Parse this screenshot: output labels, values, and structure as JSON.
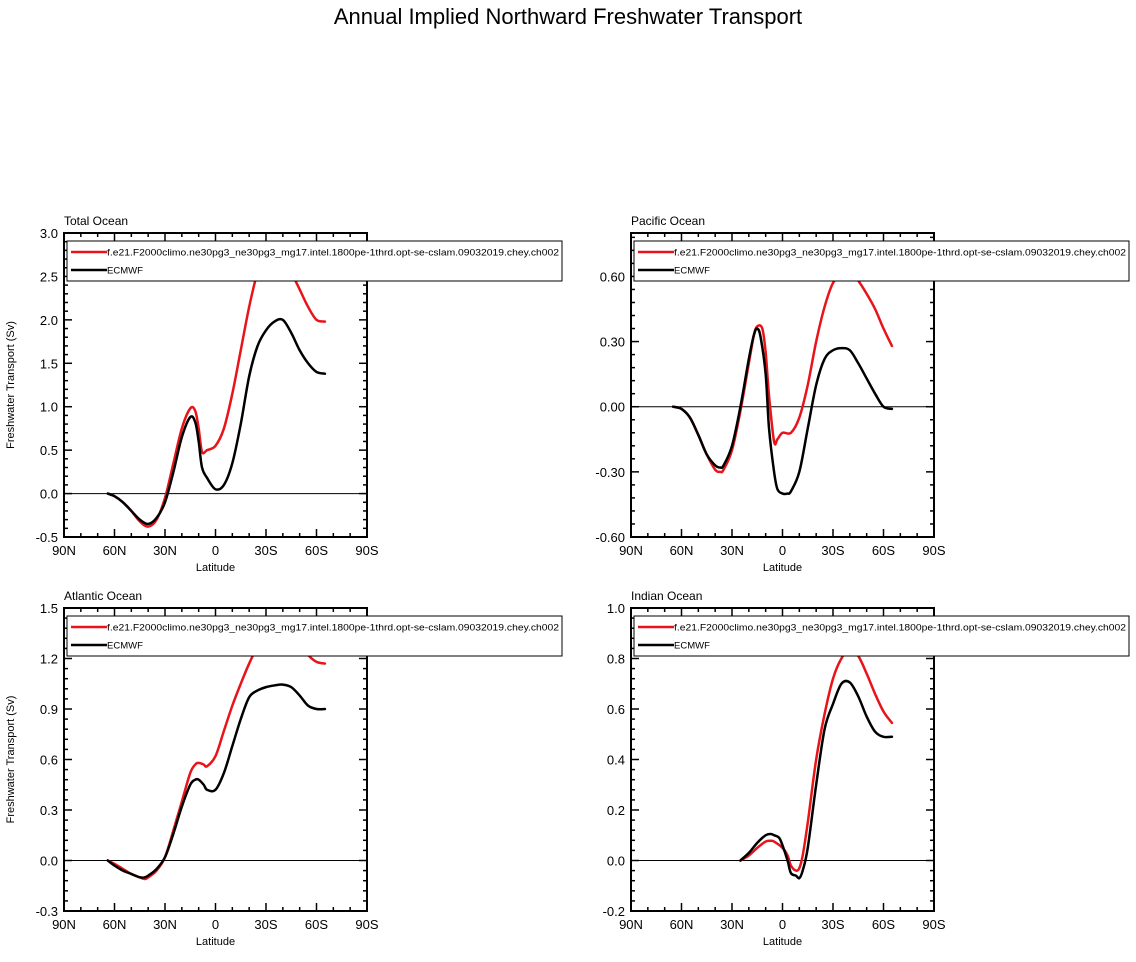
{
  "figure": {
    "title": "Annual Implied Northward Freshwater Transport"
  },
  "colors": {
    "model": "#e8141a",
    "obs": "#000000",
    "axis": "#000000"
  },
  "chart_data": [
    {
      "type": "line",
      "title": "Total Ocean",
      "xlabel": "Latitude",
      "ylabel": "Freshwater Transport (Sv)",
      "xlim": [
        -90,
        90
      ],
      "ylim": [
        -0.5,
        3.0
      ],
      "x_ticks": [
        -90,
        -60,
        -30,
        0,
        30,
        60,
        90
      ],
      "x_tick_labels": [
        "90N",
        "60N",
        "30N",
        "0",
        "30S",
        "60S",
        "90S"
      ],
      "y_ticks": [
        -0.5,
        0.0,
        0.5,
        1.0,
        1.5,
        2.0,
        2.5,
        3.0
      ],
      "y_tick_labels": [
        "-0.5",
        "0.0",
        "0.5",
        "1.0",
        "1.5",
        "2.0",
        "2.5",
        "3.0"
      ],
      "legend_position": "top",
      "series": [
        {
          "name": "f.e21.F2000climo.ne30pg3_ne30pg3_mg17.intel.1800pe-1thrd.opt-se-cslam.09032019.chey.ch002",
          "color": "#e8141a",
          "x": [
            -64,
            -60,
            -55,
            -50,
            -45,
            -40,
            -35,
            -30,
            -25,
            -20,
            -15,
            -12,
            -10,
            -8,
            -5,
            0,
            5,
            10,
            15,
            20,
            25,
            30,
            35,
            40,
            45,
            50,
            55,
            60,
            65
          ],
          "y": [
            0.0,
            -0.03,
            -0.1,
            -0.2,
            -0.32,
            -0.38,
            -0.3,
            -0.05,
            0.35,
            0.75,
            0.98,
            0.95,
            0.75,
            0.48,
            0.5,
            0.55,
            0.75,
            1.15,
            1.65,
            2.15,
            2.55,
            2.8,
            2.84,
            2.75,
            2.55,
            2.35,
            2.15,
            2.0,
            1.98
          ]
        },
        {
          "name": "ECMWF",
          "color": "#000000",
          "x": [
            -64,
            -60,
            -55,
            -50,
            -45,
            -40,
            -35,
            -30,
            -25,
            -20,
            -15,
            -12,
            -10,
            -8,
            -5,
            0,
            5,
            10,
            15,
            20,
            25,
            30,
            35,
            40,
            45,
            50,
            55,
            60,
            65
          ],
          "y": [
            0.0,
            -0.03,
            -0.1,
            -0.2,
            -0.3,
            -0.35,
            -0.28,
            -0.1,
            0.25,
            0.65,
            0.88,
            0.82,
            0.6,
            0.3,
            0.18,
            0.05,
            0.1,
            0.35,
            0.8,
            1.35,
            1.7,
            1.88,
            1.98,
            2.0,
            1.85,
            1.65,
            1.5,
            1.4,
            1.38
          ]
        }
      ]
    },
    {
      "type": "line",
      "title": "Pacific Ocean",
      "xlabel": "Latitude",
      "ylabel": "",
      "xlim": [
        -90,
        90
      ],
      "ylim": [
        -0.6,
        0.8
      ],
      "x_ticks": [
        -90,
        -60,
        -30,
        0,
        30,
        60,
        90
      ],
      "x_tick_labels": [
        "90N",
        "60N",
        "30N",
        "0",
        "30S",
        "60S",
        "90S"
      ],
      "y_ticks": [
        -0.6,
        -0.3,
        0.0,
        0.3,
        0.6
      ],
      "y_tick_labels": [
        "-0.60",
        "-0.30",
        "0.00",
        "0.30",
        "0.60"
      ],
      "legend_position": "top",
      "series": [
        {
          "name": "f.e21.F2000climo.ne30pg3_ne30pg3_mg17.intel.1800pe-1thrd.opt-se-cslam.09032019.chey.ch002",
          "color": "#e8141a",
          "x": [
            -65,
            -60,
            -55,
            -50,
            -45,
            -40,
            -37,
            -35,
            -30,
            -25,
            -20,
            -17,
            -15,
            -12,
            -10,
            -8,
            -5,
            -3,
            0,
            5,
            10,
            15,
            20,
            25,
            30,
            35,
            40,
            45,
            50,
            55,
            60,
            65
          ],
          "y": [
            0.0,
            -0.01,
            -0.05,
            -0.13,
            -0.22,
            -0.29,
            -0.3,
            -0.29,
            -0.2,
            -0.02,
            0.2,
            0.33,
            0.37,
            0.36,
            0.25,
            0.05,
            -0.16,
            -0.15,
            -0.12,
            -0.12,
            -0.05,
            0.1,
            0.3,
            0.46,
            0.57,
            0.61,
            0.62,
            0.58,
            0.52,
            0.45,
            0.36,
            0.28
          ]
        },
        {
          "name": "ECMWF",
          "color": "#000000",
          "x": [
            -65,
            -60,
            -55,
            -50,
            -45,
            -40,
            -37,
            -35,
            -30,
            -25,
            -20,
            -17,
            -15,
            -13,
            -10,
            -8,
            -5,
            -3,
            0,
            3,
            5,
            10,
            15,
            20,
            25,
            30,
            35,
            40,
            45,
            50,
            55,
            60,
            65
          ],
          "y": [
            0.0,
            -0.01,
            -0.05,
            -0.13,
            -0.22,
            -0.27,
            -0.28,
            -0.27,
            -0.18,
            0.0,
            0.22,
            0.33,
            0.36,
            0.32,
            0.15,
            -0.1,
            -0.3,
            -0.38,
            -0.4,
            -0.4,
            -0.39,
            -0.3,
            -0.1,
            0.1,
            0.22,
            0.26,
            0.27,
            0.26,
            0.2,
            0.13,
            0.06,
            0.0,
            -0.01
          ]
        }
      ]
    },
    {
      "type": "line",
      "title": "Atlantic Ocean",
      "xlabel": "Latitude",
      "ylabel": "Freshwater Transport (Sv)",
      "xlim": [
        -90,
        90
      ],
      "ylim": [
        -0.3,
        1.5
      ],
      "x_ticks": [
        -90,
        -60,
        -30,
        0,
        30,
        60,
        90
      ],
      "x_tick_labels": [
        "90N",
        "60N",
        "30N",
        "0",
        "30S",
        "60S",
        "90S"
      ],
      "y_ticks": [
        -0.3,
        0.0,
        0.3,
        0.6,
        0.9,
        1.2,
        1.5
      ],
      "y_tick_labels": [
        "-0.3",
        "0.0",
        "0.3",
        "0.6",
        "0.9",
        "1.2",
        "1.5"
      ],
      "legend_position": "top",
      "series": [
        {
          "name": "f.e21.F2000climo.ne30pg3_ne30pg3_mg17.intel.1800pe-1thrd.opt-se-cslam.09032019.chey.ch002",
          "color": "#e8141a",
          "x": [
            -64,
            -60,
            -55,
            -50,
            -45,
            -42,
            -40,
            -35,
            -30,
            -25,
            -20,
            -15,
            -12,
            -10,
            -7,
            -5,
            0,
            5,
            10,
            15,
            20,
            25,
            30,
            35,
            40,
            45,
            50,
            55,
            60,
            65
          ],
          "y": [
            0.0,
            -0.02,
            -0.05,
            -0.08,
            -0.1,
            -0.11,
            -0.1,
            -0.06,
            0.02,
            0.18,
            0.35,
            0.52,
            0.57,
            0.58,
            0.57,
            0.56,
            0.62,
            0.77,
            0.92,
            1.05,
            1.17,
            1.27,
            1.33,
            1.37,
            1.38,
            1.35,
            1.28,
            1.22,
            1.18,
            1.17
          ]
        },
        {
          "name": "ECMWF",
          "color": "#000000",
          "x": [
            -64,
            -60,
            -55,
            -50,
            -45,
            -42,
            -40,
            -35,
            -30,
            -25,
            -20,
            -15,
            -12,
            -10,
            -7,
            -5,
            0,
            5,
            10,
            15,
            20,
            25,
            30,
            35,
            40,
            45,
            50,
            55,
            60,
            65
          ],
          "y": [
            0.0,
            -0.03,
            -0.06,
            -0.08,
            -0.1,
            -0.1,
            -0.09,
            -0.05,
            0.02,
            0.16,
            0.32,
            0.45,
            0.48,
            0.48,
            0.45,
            0.42,
            0.42,
            0.52,
            0.68,
            0.84,
            0.97,
            1.01,
            1.03,
            1.04,
            1.045,
            1.03,
            0.98,
            0.92,
            0.9,
            0.9
          ]
        }
      ]
    },
    {
      "type": "line",
      "title": "Indian Ocean",
      "xlabel": "Latitude",
      "ylabel": "",
      "xlim": [
        -90,
        90
      ],
      "ylim": [
        -0.2,
        1.0
      ],
      "x_ticks": [
        -90,
        -60,
        -30,
        0,
        30,
        60,
        90
      ],
      "x_tick_labels": [
        "90N",
        "60N",
        "30N",
        "0",
        "30S",
        "60S",
        "90S"
      ],
      "y_ticks": [
        -0.2,
        0.0,
        0.2,
        0.4,
        0.6,
        0.8,
        1.0
      ],
      "y_tick_labels": [
        "-0.2",
        "0.0",
        "0.2",
        "0.4",
        "0.6",
        "0.8",
        "1.0"
      ],
      "legend_position": "top",
      "series": [
        {
          "name": "f.e21.F2000climo.ne30pg3_ne30pg3_mg17.intel.1800pe-1thrd.opt-se-cslam.09032019.chey.ch002",
          "color": "#e8141a",
          "x": [
            -25,
            -20,
            -15,
            -10,
            -7,
            -5,
            0,
            3,
            5,
            8,
            10,
            12,
            15,
            20,
            25,
            30,
            35,
            40,
            45,
            50,
            55,
            60,
            65
          ],
          "y": [
            0.0,
            0.02,
            0.05,
            0.075,
            0.078,
            0.075,
            0.05,
            0.02,
            -0.02,
            -0.04,
            -0.03,
            0.02,
            0.15,
            0.4,
            0.58,
            0.72,
            0.8,
            0.835,
            0.81,
            0.74,
            0.66,
            0.59,
            0.545
          ]
        },
        {
          "name": "ECMWF",
          "color": "#000000",
          "x": [
            -25,
            -20,
            -15,
            -10,
            -7,
            -5,
            -2,
            0,
            3,
            5,
            8,
            10,
            12,
            15,
            20,
            25,
            30,
            35,
            40,
            45,
            50,
            55,
            60,
            65
          ],
          "y": [
            0.0,
            0.03,
            0.07,
            0.1,
            0.105,
            0.1,
            0.09,
            0.06,
            0.0,
            -0.05,
            -0.06,
            -0.07,
            -0.04,
            0.05,
            0.3,
            0.52,
            0.62,
            0.7,
            0.705,
            0.65,
            0.57,
            0.51,
            0.49,
            0.49
          ]
        }
      ]
    }
  ]
}
